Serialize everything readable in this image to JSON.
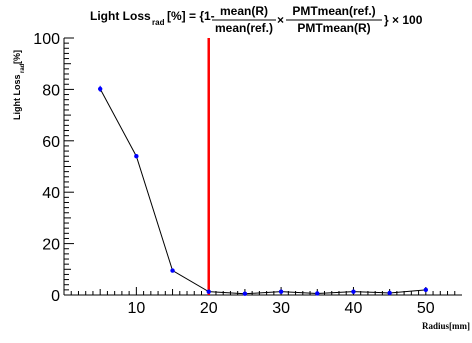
{
  "chart_data": {
    "type": "line",
    "title": {
      "lhs_main": "Light Loss",
      "lhs_sub": "rad",
      "lhs_tail": "[%] = {1-",
      "frac1_num": "mean(R)",
      "frac1_den": "mean(ref.)",
      "times": "×",
      "frac2_num": "PMTmean(ref.)",
      "frac2_den": "PMTmean(R)",
      "tail": "}  × 100"
    },
    "ylabel": {
      "main": "Light Loss",
      "sub": "rad",
      "tail": "[%]"
    },
    "xlabel": "Radius[mm]",
    "xlim": [
      0,
      55
    ],
    "ylim": [
      0,
      100
    ],
    "xticks": [
      10,
      20,
      30,
      40,
      50
    ],
    "yticks": [
      0,
      20,
      40,
      60,
      80,
      100
    ],
    "x": [
      5,
      10,
      15,
      20,
      25,
      30,
      35,
      40,
      45,
      50
    ],
    "y": [
      80.2,
      54.0,
      9.5,
      1.3,
      0.5,
      1.3,
      0.6,
      1.3,
      0.8,
      2.0
    ],
    "yerr": [
      1.2,
      0.5,
      0.5,
      0.5,
      0.5,
      0.8,
      0.5,
      0.8,
      0.5,
      0.8
    ],
    "vline_x": 20,
    "colors": {
      "line": "#000000",
      "marker": "#0000ff",
      "vline": "#ff0000",
      "axis": "#000000"
    },
    "grid": false,
    "legend": "none"
  }
}
